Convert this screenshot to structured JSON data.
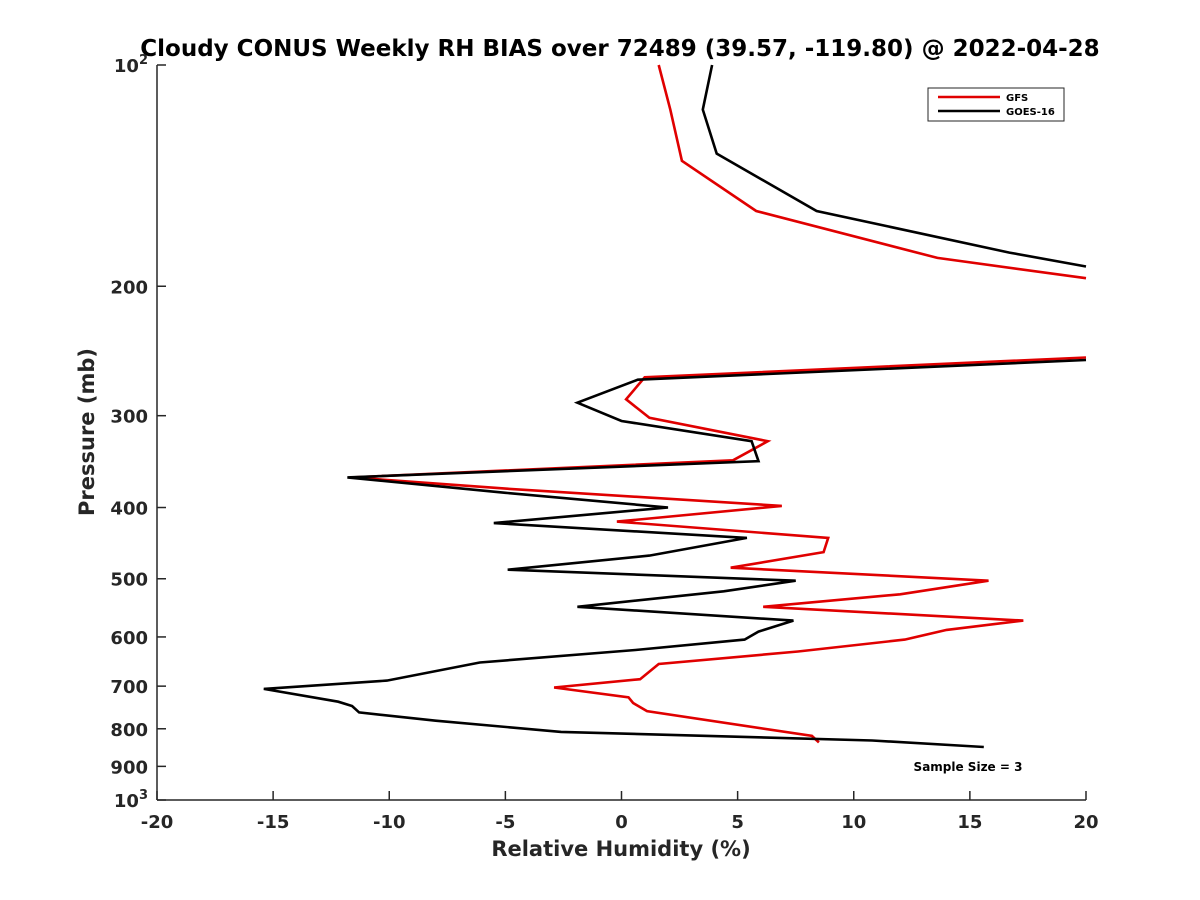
{
  "chart_data": {
    "type": "line",
    "title": "Cloudy CONUS Weekly RH BIAS over 72489 (39.57, -119.80) @ 2022-04-28",
    "xlabel": "Relative Humidity (%)",
    "ylabel": "Pressure (mb)",
    "xlim": [
      -20,
      20
    ],
    "ylim": [
      100,
      1000
    ],
    "y_scale": "log",
    "y_reversed": true,
    "grid": false,
    "legend_position": "top-right",
    "x_ticks": [
      -20,
      -15,
      -10,
      -5,
      0,
      5,
      10,
      15,
      20
    ],
    "x_tick_labels": [
      "-20",
      "-15",
      "-10",
      "-5",
      "0",
      "5",
      "10",
      "15",
      "20"
    ],
    "y_ticks": [
      100,
      200,
      300,
      400,
      500,
      600,
      700,
      800,
      900,
      1000
    ],
    "y_tick_labels": [
      {
        "base": "10",
        "exp": "2"
      },
      {
        "base": "200",
        "exp": ""
      },
      {
        "base": "300",
        "exp": ""
      },
      {
        "base": "400",
        "exp": ""
      },
      {
        "base": "500",
        "exp": ""
      },
      {
        "base": "600",
        "exp": ""
      },
      {
        "base": "700",
        "exp": ""
      },
      {
        "base": "800",
        "exp": ""
      },
      {
        "base": "900",
        "exp": ""
      },
      {
        "base": "10",
        "exp": "3"
      }
    ],
    "annotation": "Sample Size = 3",
    "series": [
      {
        "name": "GFS",
        "color": "#e00000",
        "points": [
          [
            1.6,
            100
          ],
          [
            2.1,
            115
          ],
          [
            2.6,
            135
          ],
          [
            5.8,
            158
          ],
          [
            13.6,
            183
          ],
          [
            20,
            195
          ],
          null,
          [
            20,
            250
          ],
          [
            1.0,
            266
          ],
          [
            0.2,
            285
          ],
          [
            1.2,
            302
          ],
          [
            6.3,
            325
          ],
          [
            4.8,
            345
          ],
          [
            -11.6,
            364
          ],
          [
            -5.0,
            377
          ],
          [
            6.9,
            398
          ],
          [
            -0.2,
            418
          ],
          [
            8.9,
            440
          ],
          [
            8.7,
            460
          ],
          [
            4.7,
            483
          ],
          [
            15.8,
            503
          ],
          [
            12.0,
            525
          ],
          [
            6.1,
            546
          ],
          [
            17.3,
            570
          ],
          [
            14.0,
            587
          ],
          [
            12.2,
            605
          ],
          [
            7.6,
            628
          ],
          [
            1.6,
            653
          ],
          [
            0.8,
            685
          ],
          [
            -2.9,
            703
          ],
          [
            0.3,
            725
          ],
          [
            0.5,
            738
          ],
          [
            1.1,
            757
          ],
          [
            8.2,
            818
          ],
          [
            8.5,
            835
          ]
        ]
      },
      {
        "name": "GOES-16",
        "color": "#000000",
        "points": [
          [
            3.9,
            100
          ],
          [
            3.5,
            115
          ],
          [
            4.1,
            132
          ],
          [
            8.4,
            158
          ],
          [
            16.7,
            180
          ],
          [
            20,
            188
          ],
          null,
          [
            20,
            252
          ],
          [
            0.7,
            268
          ],
          [
            -1.9,
            288
          ],
          [
            0.0,
            305
          ],
          [
            5.6,
            325
          ],
          [
            5.9,
            346
          ],
          [
            -11.8,
            364
          ],
          [
            -5.0,
            382
          ],
          [
            2.0,
            400
          ],
          [
            -5.5,
            420
          ],
          [
            5.4,
            440
          ],
          [
            1.2,
            465
          ],
          [
            -4.9,
            486
          ],
          [
            7.5,
            503
          ],
          [
            4.4,
            520
          ],
          [
            -1.9,
            546
          ],
          [
            7.4,
            570
          ],
          [
            5.9,
            590
          ],
          [
            5.3,
            605
          ],
          [
            0.6,
            625
          ],
          [
            -6.1,
            650
          ],
          [
            -10.1,
            688
          ],
          [
            -15.4,
            706
          ],
          [
            -12.2,
            735
          ],
          [
            -11.6,
            745
          ],
          [
            -11.3,
            760
          ],
          [
            -8.0,
            780
          ],
          [
            -2.6,
            808
          ],
          [
            10.8,
            830
          ],
          [
            15.6,
            847
          ]
        ]
      }
    ]
  }
}
